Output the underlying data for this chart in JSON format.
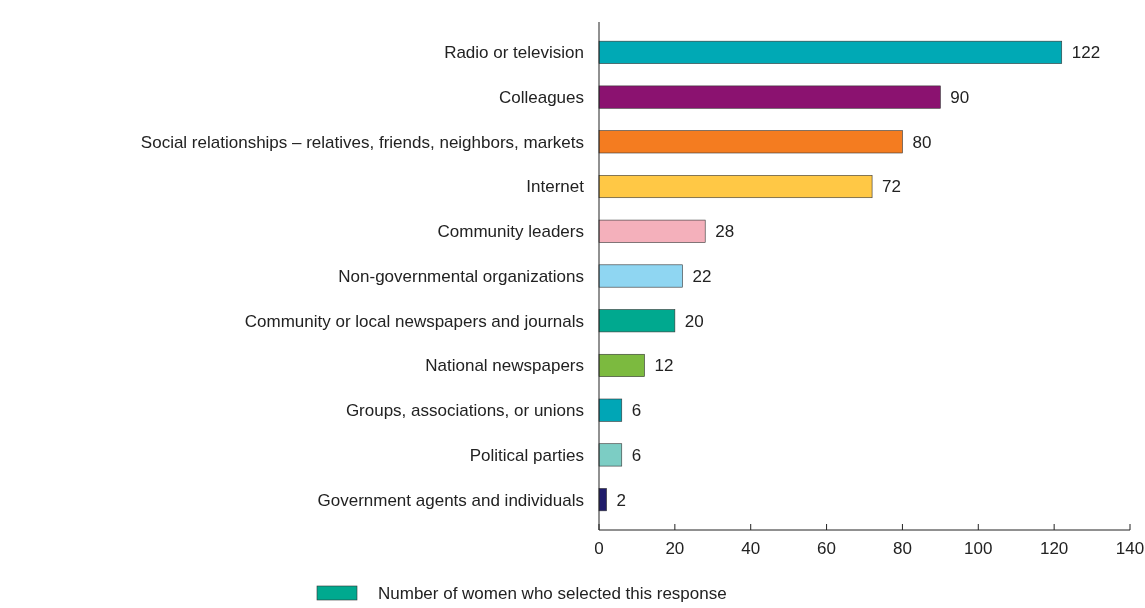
{
  "chart_data": {
    "type": "bar",
    "orientation": "horizontal",
    "categories": [
      "Radio or television",
      "Colleagues",
      "Social relationships – relatives, friends, neighbors, markets",
      "Internet",
      "Community leaders",
      "Non-governmental organizations",
      "Community or local newspapers and journals",
      "National newspapers",
      "Groups, associations, or unions",
      "Political parties",
      "Government agents and individuals"
    ],
    "series": [
      {
        "name": "Number of women who selected this response",
        "color": "#00a98f",
        "colors": [
          "#00a9b5",
          "#8b1270",
          "#f47c20",
          "#ffc845",
          "#f4b0bb",
          "#8fd6f2",
          "#00a98f",
          "#7cba3f",
          "#00a6b6",
          "#7ccdc4",
          "#1f1c6b"
        ],
        "values": [
          122,
          90,
          80,
          72,
          28,
          22,
          20,
          12,
          6,
          6,
          2
        ]
      }
    ],
    "xlim": [
      0,
      140
    ],
    "xticks": [
      0,
      20,
      40,
      60,
      80,
      100,
      120,
      140
    ],
    "data_labels": true,
    "legend": "bottom",
    "grid": false
  }
}
